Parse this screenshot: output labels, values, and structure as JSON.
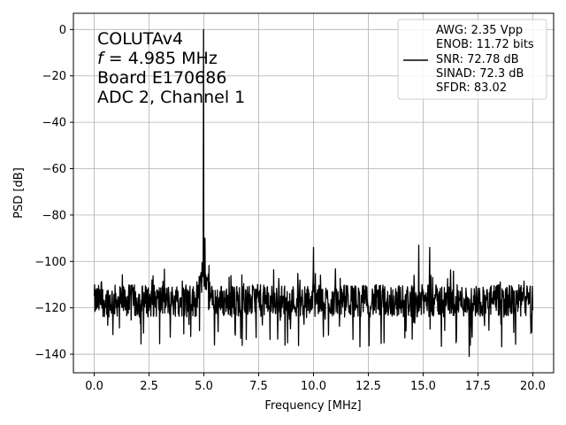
{
  "chart_data": {
    "type": "line",
    "xlabel": "Frequency [MHz]",
    "ylabel": "PSD [dB]",
    "xlim": [
      -0.95,
      20.95
    ],
    "ylim": [
      -148,
      7
    ],
    "x_ticks": [
      0.0,
      2.5,
      5.0,
      7.5,
      10.0,
      12.5,
      15.0,
      17.5,
      20.0
    ],
    "x_tick_labels": [
      "0.0",
      "2.5",
      "5.0",
      "7.5",
      "10.0",
      "12.5",
      "15.0",
      "17.5",
      "20.0"
    ],
    "y_ticks": [
      0,
      -20,
      -40,
      -60,
      -80,
      -100,
      -120,
      -140
    ],
    "y_tick_labels": [
      "0",
      "−20",
      "−40",
      "−60",
      "−80",
      "−100",
      "−120",
      "−140"
    ],
    "grid": true,
    "legend_placement": "upper-right",
    "annotation": {
      "line1": "COLUTAv4",
      "line2_symbol": "f",
      "line2_rest": " = 4.985 MHz",
      "line3": "Board E170686",
      "line4": "ADC 2, Channel 1"
    },
    "legend": {
      "lines": [
        "AWG: 2.35 Vpp",
        "ENOB: 11.72 bits",
        "SNR: 72.78 dB",
        "SINAD: 72.3 dB",
        "SFDR: 83.02"
      ]
    },
    "series": [
      {
        "color": "#000000",
        "x_start": 0.0,
        "x_end": 20.0,
        "noise_floor_db": -117,
        "noise_min_db": -141,
        "noise_max_db": -103,
        "peaks": [
          {
            "x": 4.985,
            "y": 0
          },
          {
            "x": 5.05,
            "y": -90
          },
          {
            "x": 10.0,
            "y": -94
          },
          {
            "x": 14.8,
            "y": -93
          },
          {
            "x": 15.3,
            "y": -94
          },
          {
            "x": 17.1,
            "y": -141
          }
        ]
      }
    ]
  }
}
